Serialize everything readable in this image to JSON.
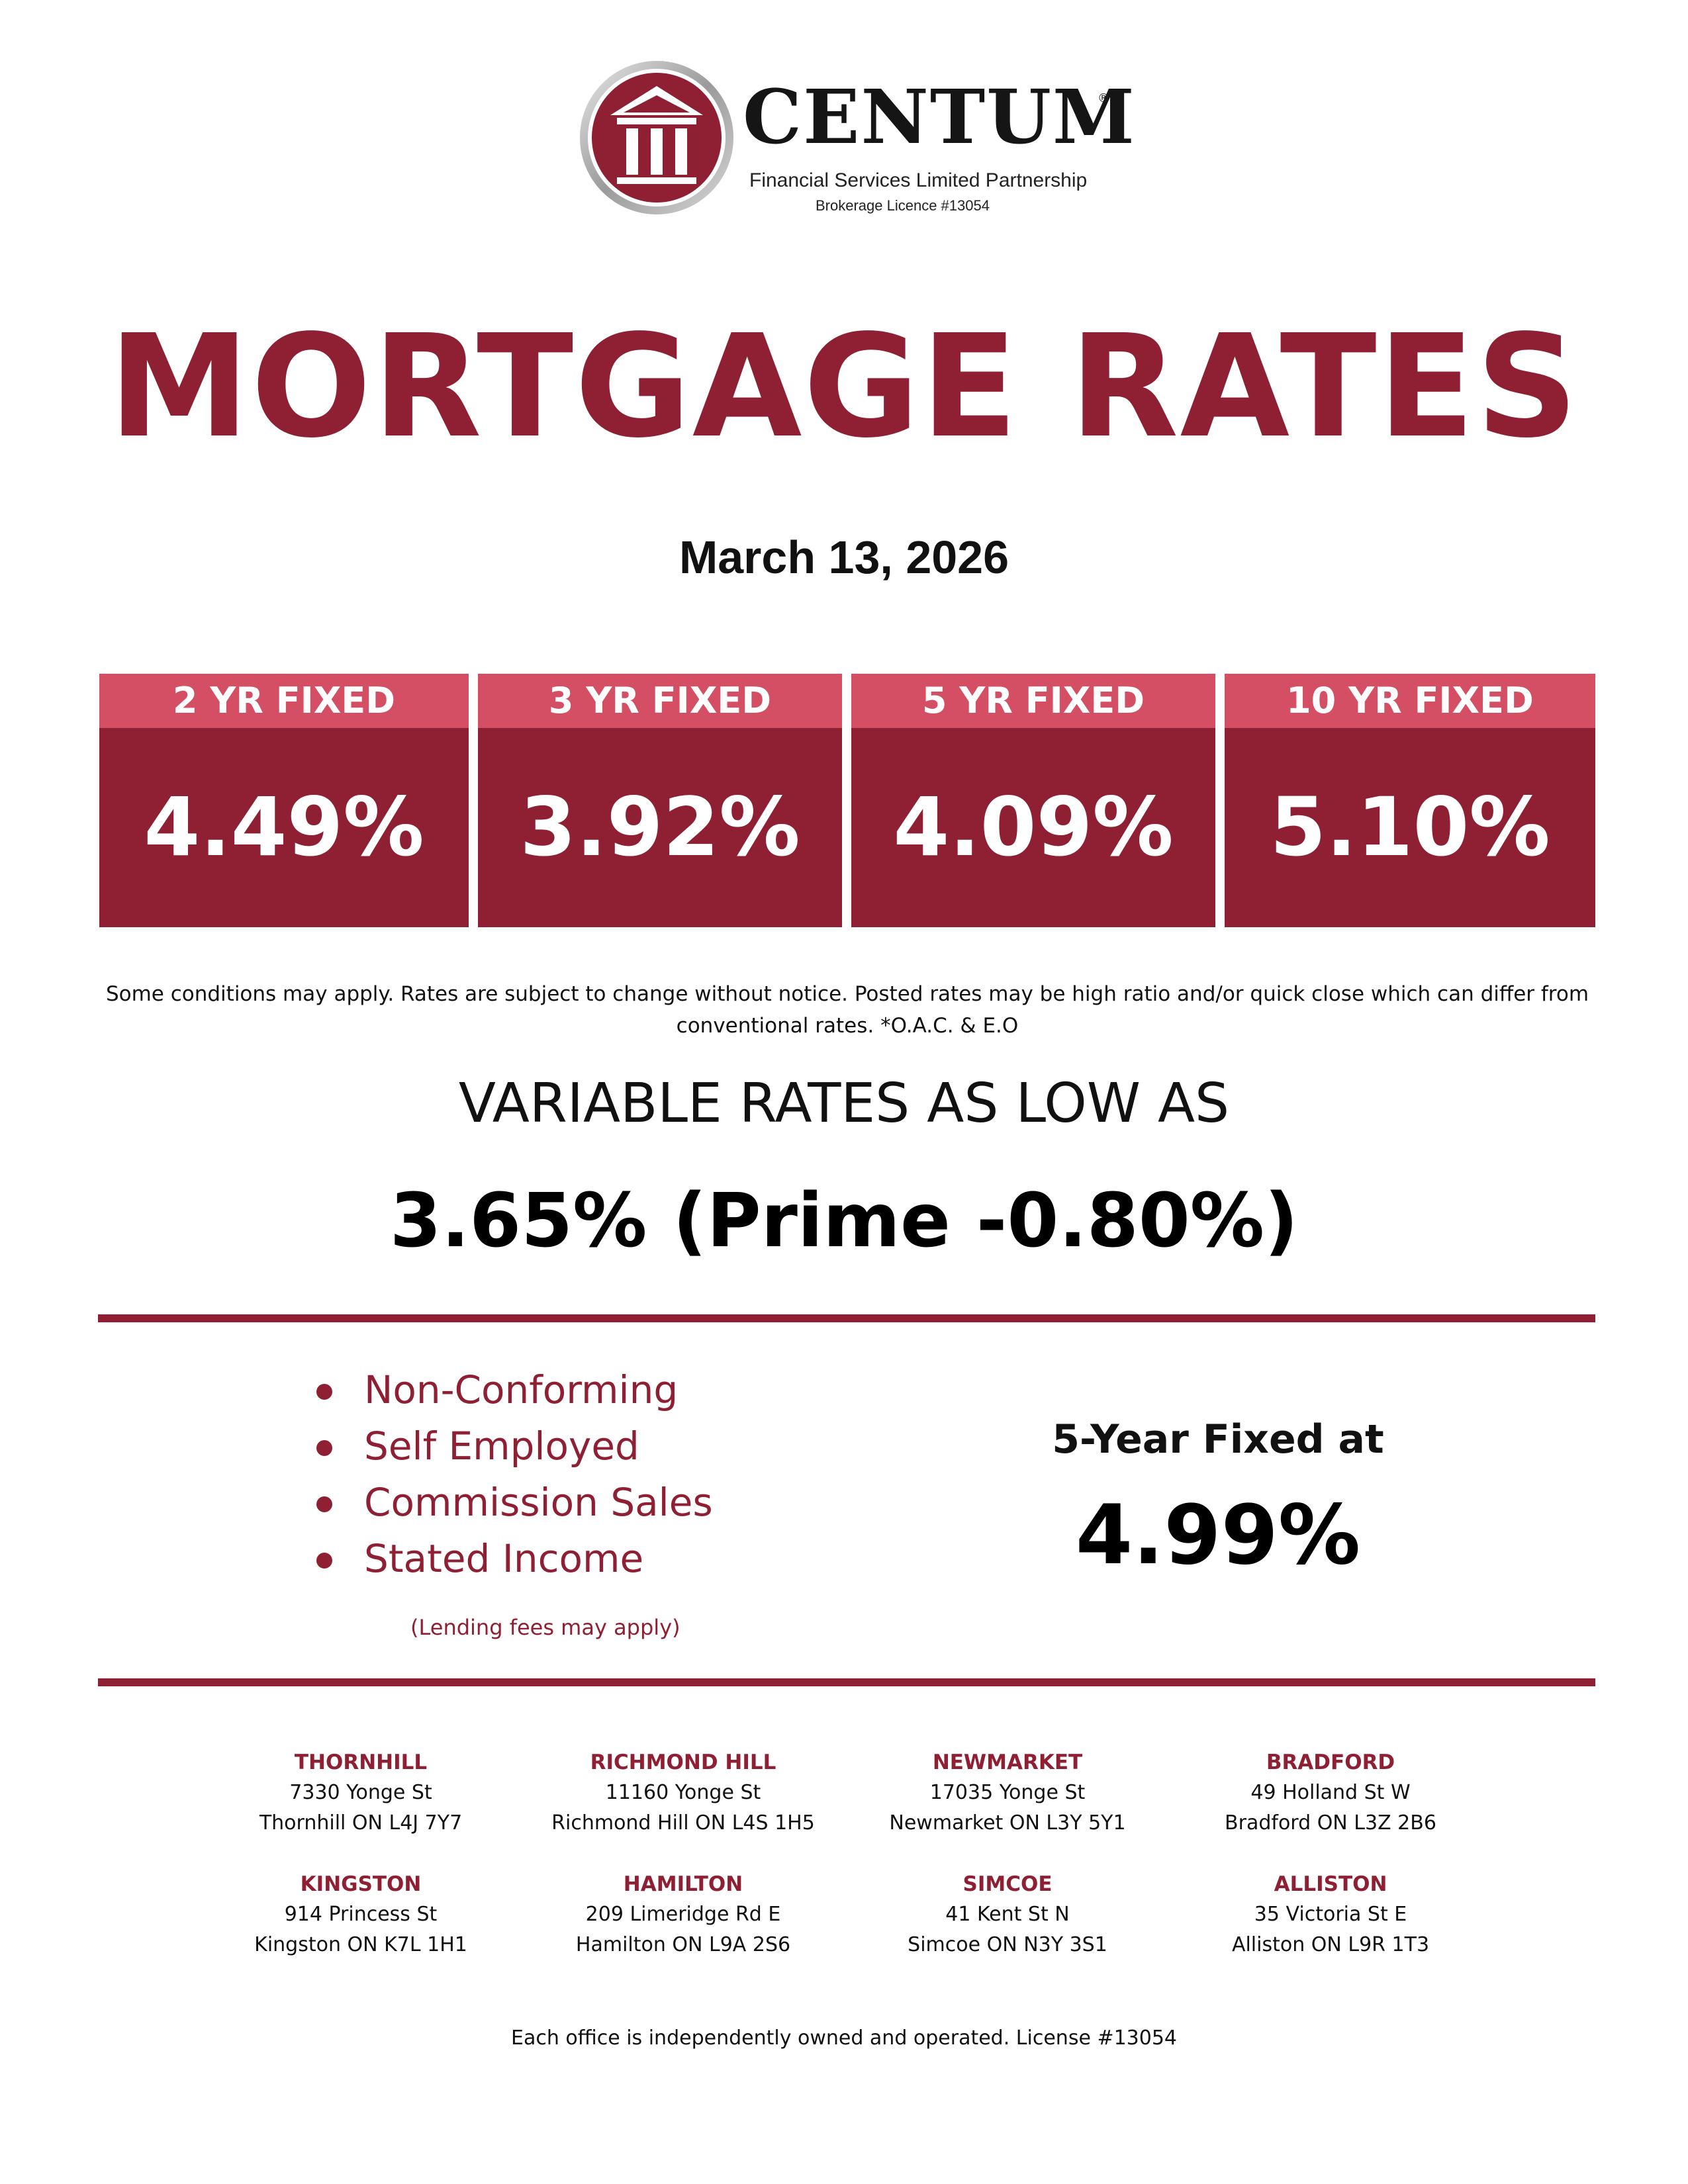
{
  "header": {
    "brand_name": "CENTUM",
    "brand_mark": "®",
    "brand_subtitle": "Financial Services Limited Partnership",
    "brokerage_licence": "Brokerage Licence #13054",
    "logo_icon": "pillared-building-logo-icon"
  },
  "title": "MORTGAGE RATES",
  "date": "March 13, 2026",
  "fixed_rates": [
    {
      "term": "2 YR FIXED",
      "rate": "4.49%"
    },
    {
      "term": "3 YR FIXED",
      "rate": "3.92%"
    },
    {
      "term": "5 YR FIXED",
      "rate": "4.09%"
    },
    {
      "term": "10 YR FIXED",
      "rate": "5.10%"
    }
  ],
  "disclaimer": "Some conditions may apply. Rates are subject to change without notice. Posted rates may be high ratio and/or quick close which can differ from conventional rates. *O.A.C. & E.O",
  "variable": {
    "label": "VARIABLE RATES AS LOW AS",
    "rate": "3.65% (Prime -0.80%)"
  },
  "alt_lending": {
    "items": [
      "Non-Conforming",
      "Self Employed",
      "Commission Sales",
      "Stated Income"
    ],
    "note": "(Lending fees may apply)",
    "special_label": "5-Year Fixed at",
    "special_rate": "4.99%"
  },
  "offices": [
    {
      "name": "THORNHILL",
      "street": "7330 Yonge St",
      "city": "Thornhill ON  L4J 7Y7"
    },
    {
      "name": "RICHMOND HILL",
      "street": "11160 Yonge St",
      "city": "Richmond Hill ON  L4S 1H5"
    },
    {
      "name": "NEWMARKET",
      "street": "17035 Yonge St",
      "city": "Newmarket ON  L3Y 5Y1"
    },
    {
      "name": "BRADFORD",
      "street": "49 Holland St W",
      "city": "Bradford ON  L3Z 2B6"
    },
    {
      "name": "KINGSTON",
      "street": "914 Princess St",
      "city": "Kingston ON  K7L 1H1"
    },
    {
      "name": "HAMILTON",
      "street": "209 Limeridge Rd E",
      "city": "Hamilton ON  L9A 2S6"
    },
    {
      "name": "SIMCOE",
      "street": "41 Kent St N",
      "city": "Simcoe ON  N3Y 3S1"
    },
    {
      "name": "ALLISTON",
      "street": "35 Victoria St E",
      "city": "Alliston ON L9R 1T3"
    }
  ],
  "footer": "Each office is independently owned and operated. License #13054",
  "colors": {
    "brand_maroon": "#8f2033",
    "header_pink": "#d44f63",
    "text": "#111111"
  }
}
